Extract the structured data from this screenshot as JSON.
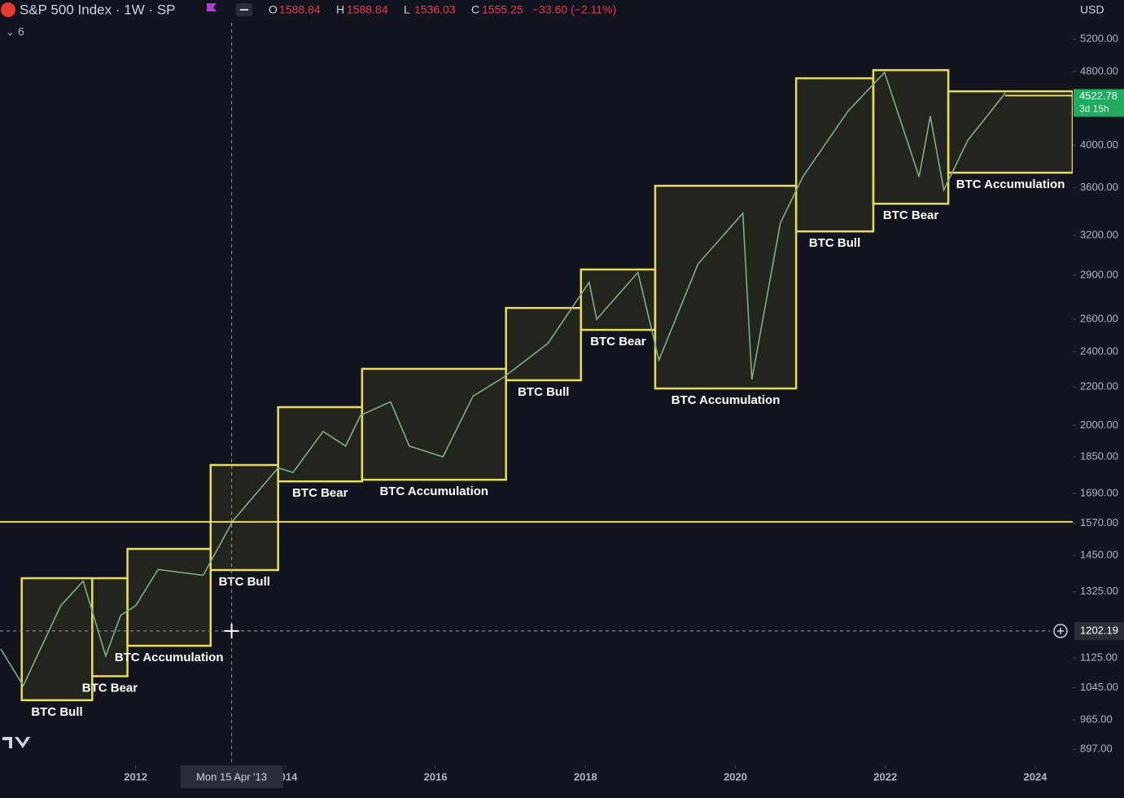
{
  "chart_data": {
    "type": "line",
    "title": "S&P 500 Index · 1W · SP",
    "ohlc": [
      {
        "label": "O",
        "value": 1588.84
      },
      {
        "label": "H",
        "value": 1588.84
      },
      {
        "label": "L",
        "value": 1536.03
      },
      {
        "label": "C",
        "value": 1555.25
      }
    ],
    "change": "−33.60 (−2.11%)",
    "collapse_count": 6,
    "currency": "USD",
    "log_scale": true,
    "grid": false,
    "color": "#7fae8c",
    "x": [
      2010.2,
      2010.5,
      2011.0,
      2011.3,
      2011.6,
      2011.8,
      2012.0,
      2012.3,
      2012.9,
      2013.3,
      2013.9,
      2014.1,
      2014.5,
      2014.8,
      2015.0,
      2015.4,
      2015.65,
      2016.1,
      2016.5,
      2016.9,
      2017.5,
      2018.05,
      2018.15,
      2018.7,
      2018.98,
      2019.5,
      2020.1,
      2020.22,
      2020.6,
      2020.9,
      2021.5,
      2021.99,
      2022.45,
      2022.6,
      2022.78,
      2023.1,
      2023.6
    ],
    "values": [
      1150,
      1050,
      1280,
      1360,
      1130,
      1250,
      1280,
      1400,
      1380,
      1580,
      1800,
      1780,
      1970,
      1900,
      2050,
      2120,
      1900,
      1850,
      2150,
      2250,
      2450,
      2850,
      2600,
      2920,
      2350,
      2980,
      3380,
      2240,
      3300,
      3700,
      4350,
      4790,
      3700,
      4300,
      3580,
      4050,
      4550
    ],
    "xlim": [
      2010.19,
      2024.5
    ],
    "xticks": [
      2012,
      2014,
      2016,
      2018,
      2020,
      2022,
      2024
    ],
    "ylim": [
      862,
      5730
    ],
    "yticks": [
      {
        "value": 5200,
        "label": "5200.00"
      },
      {
        "value": 4800,
        "label": "4800.00"
      },
      {
        "value": 4000,
        "label": "4000.00"
      },
      {
        "value": 3600,
        "label": "3600.00"
      },
      {
        "value": 3200,
        "label": "3200.00"
      },
      {
        "value": 2900,
        "label": "2900.00"
      },
      {
        "value": 2600,
        "label": "2600.00"
      },
      {
        "value": 2400,
        "label": "2400.00"
      },
      {
        "value": 2200,
        "label": "2200.00"
      },
      {
        "value": 2000,
        "label": "2000.00"
      },
      {
        "value": 1850,
        "label": "1850.00"
      },
      {
        "value": 1690,
        "label": "1690.00"
      },
      {
        "value": 1570,
        "label": "1570.00"
      },
      {
        "value": 1450,
        "label": "1450.00"
      },
      {
        "value": 1325,
        "label": "1325.00"
      },
      {
        "value": 1125,
        "label": "1125.00"
      },
      {
        "value": 1045,
        "label": "1045.00"
      },
      {
        "value": 965,
        "label": "965.00"
      },
      {
        "value": 897,
        "label": "897.00"
      }
    ],
    "box_color": "#e8dc5c",
    "boxes": [
      {
        "label": "BTC Bull",
        "x0": 2010.48,
        "x1": 2011.42,
        "y0": 1013,
        "y1": 1370
      },
      {
        "label": "BTC Bear",
        "x0": 2011.42,
        "x1": 2011.89,
        "y0": 1075,
        "y1": 1370
      },
      {
        "label": "BTC Accumulation",
        "x0": 2011.89,
        "x1": 2013.0,
        "y0": 1159,
        "y1": 1473
      },
      {
        "label": "BTC Bull",
        "x0": 2013.0,
        "x1": 2013.9,
        "y0": 1398,
        "y1": 1813
      },
      {
        "label": "BTC Bear",
        "x0": 2013.9,
        "x1": 2015.02,
        "y0": 1741,
        "y1": 2092
      },
      {
        "label": "BTC Accumulation",
        "x0": 2015.02,
        "x1": 2016.94,
        "y0": 1748,
        "y1": 2300
      },
      {
        "label": "BTC Bull",
        "x0": 2016.94,
        "x1": 2017.94,
        "y0": 2236,
        "y1": 2674
      },
      {
        "label": "BTC Bear",
        "x0": 2017.94,
        "x1": 2018.93,
        "y0": 2533,
        "y1": 2941
      },
      {
        "label": "BTC Accumulation",
        "x0": 2018.93,
        "x1": 2020.81,
        "y0": 2191,
        "y1": 3618
      },
      {
        "label": "BTC Bull",
        "x0": 2020.81,
        "x1": 2021.84,
        "y0": 3232,
        "y1": 4721
      },
      {
        "label": "BTC Bear",
        "x0": 2021.84,
        "x1": 2022.84,
        "y0": 3461,
        "y1": 4817
      },
      {
        "label": "BTC Accumulation",
        "x0": 2022.84,
        "x1": 2024.5,
        "y0": 3737,
        "y1": 4571
      }
    ],
    "hline": 1575,
    "crosshair": {
      "x": 2013.28,
      "date_label": "Mon 15 Apr '13",
      "y": 1202.19
    },
    "last_price": {
      "value": 4522.78,
      "countdown": "3d 15h"
    }
  }
}
